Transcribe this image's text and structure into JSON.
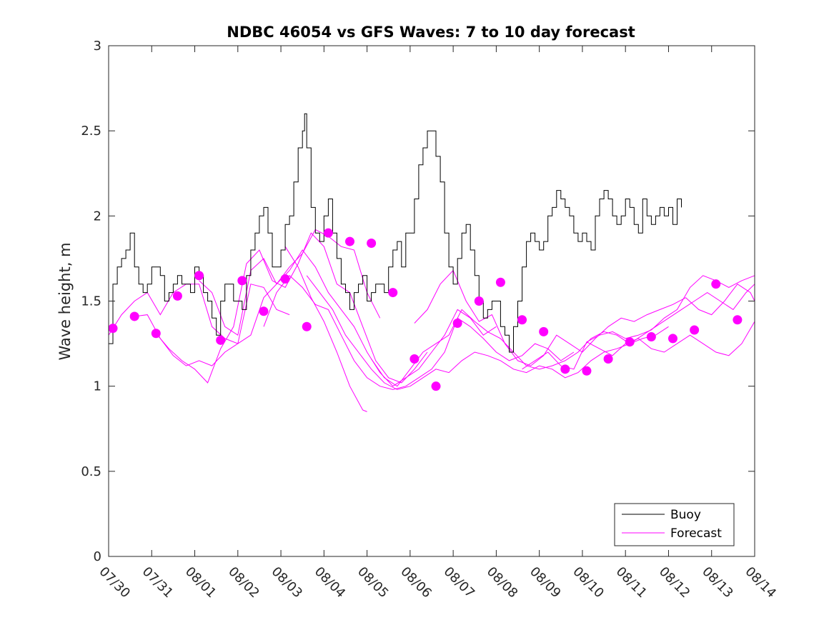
{
  "chart_data": {
    "type": "line",
    "title": "NDBC 46054 vs GFS Waves: 7 to 10 day forecast",
    "xlabel": "",
    "ylabel": "Wave height, m",
    "ylim": [
      0,
      3
    ],
    "yticks": [
      "0",
      "0.5",
      "1",
      "1.5",
      "2",
      "2.5",
      "3"
    ],
    "xlim": [
      "07/30",
      "08/14"
    ],
    "xticks": [
      "07/30",
      "07/31",
      "08/01",
      "08/02",
      "08/03",
      "08/04",
      "08/05",
      "08/06",
      "08/07",
      "08/08",
      "08/09",
      "08/10",
      "08/11",
      "08/12",
      "08/13",
      "08/14"
    ],
    "grid": false,
    "legend": {
      "position": "bottom-right",
      "entries": [
        "Buoy",
        "Forecast"
      ]
    },
    "colors": {
      "buoy": "#000000",
      "forecast": "#ff00ff"
    },
    "buoy": {
      "name": "Buoy",
      "x": [
        0,
        0.1,
        0.2,
        0.3,
        0.4,
        0.5,
        0.6,
        0.7,
        0.8,
        0.9,
        1.0,
        1.1,
        1.2,
        1.3,
        1.4,
        1.5,
        1.6,
        1.7,
        1.8,
        1.9,
        2.0,
        2.1,
        2.2,
        2.3,
        2.4,
        2.5,
        2.6,
        2.7,
        2.8,
        2.9,
        3.0,
        3.1,
        3.2,
        3.3,
        3.4,
        3.5,
        3.6,
        3.7,
        3.8,
        3.9,
        4.0,
        4.1,
        4.2,
        4.3,
        4.4,
        4.5,
        4.55,
        4.6,
        4.7,
        4.8,
        4.9,
        5.0,
        5.1,
        5.2,
        5.3,
        5.4,
        5.5,
        5.6,
        5.7,
        5.8,
        5.9,
        6.0,
        6.1,
        6.2,
        6.3,
        6.4,
        6.5,
        6.6,
        6.7,
        6.8,
        6.9,
        7.0,
        7.1,
        7.2,
        7.3,
        7.4,
        7.5,
        7.6,
        7.7,
        7.8,
        7.9,
        8.0,
        8.1,
        8.2,
        8.3,
        8.4,
        8.5,
        8.6,
        8.7,
        8.8,
        8.9,
        9.0,
        9.1,
        9.2,
        9.3,
        9.4,
        9.5,
        9.6,
        9.7,
        9.8,
        9.9,
        10.0,
        10.1,
        10.2,
        10.3,
        10.4,
        10.5,
        10.6,
        10.7,
        10.8,
        10.9,
        11.0,
        11.1,
        11.2,
        11.3,
        11.4,
        11.5,
        11.6,
        11.7,
        11.8,
        11.9,
        12.0,
        12.1,
        12.2,
        12.3,
        12.4,
        12.5,
        12.6,
        12.7,
        12.8,
        12.9,
        13.0,
        13.1,
        13.2,
        13.3
      ],
      "values": [
        1.25,
        1.6,
        1.7,
        1.75,
        1.8,
        1.9,
        1.7,
        1.6,
        1.55,
        1.6,
        1.7,
        1.7,
        1.65,
        1.5,
        1.55,
        1.6,
        1.65,
        1.6,
        1.6,
        1.55,
        1.7,
        1.65,
        1.55,
        1.5,
        1.4,
        1.3,
        1.5,
        1.6,
        1.6,
        1.5,
        1.5,
        1.45,
        1.65,
        1.8,
        1.9,
        2.0,
        2.05,
        1.9,
        1.7,
        1.7,
        1.8,
        1.95,
        2.0,
        2.2,
        2.4,
        2.5,
        2.6,
        2.4,
        2.05,
        1.9,
        1.85,
        2.0,
        2.1,
        1.9,
        1.75,
        1.6,
        1.55,
        1.45,
        1.55,
        1.6,
        1.65,
        1.5,
        1.55,
        1.6,
        1.6,
        1.55,
        1.7,
        1.8,
        1.85,
        1.7,
        1.9,
        1.9,
        2.1,
        2.3,
        2.4,
        2.5,
        2.5,
        2.35,
        2.2,
        1.9,
        1.7,
        1.6,
        1.75,
        1.9,
        1.95,
        1.8,
        1.65,
        1.5,
        1.4,
        1.45,
        1.5,
        1.5,
        1.35,
        1.3,
        1.2,
        1.35,
        1.5,
        1.7,
        1.85,
        1.9,
        1.85,
        1.8,
        1.85,
        2.0,
        2.05,
        2.15,
        2.1,
        2.05,
        2.0,
        1.9,
        1.85,
        1.9,
        1.85,
        1.8,
        2.0,
        2.1,
        2.15,
        2.1,
        2.0,
        1.95,
        2.0,
        2.1,
        2.05,
        1.95,
        1.9,
        2.1,
        2.0,
        1.95,
        2.0,
        2.05,
        2.0,
        2.05,
        1.95,
        2.1,
        2.05
      ]
    },
    "forecast_markers": {
      "name": "Forecast",
      "x": [
        0.1,
        0.6,
        1.1,
        1.6,
        2.1,
        2.6,
        3.1,
        3.6,
        4.1,
        4.6,
        5.1,
        5.6,
        6.1,
        6.6,
        7.1,
        7.6,
        8.1,
        8.6,
        9.1,
        9.6,
        10.1,
        10.6,
        11.1,
        11.6,
        12.1,
        12.6,
        13.1,
        13.6,
        14.1,
        14.6
      ],
      "values": [
        1.34,
        1.41,
        1.31,
        1.53,
        1.65,
        1.27,
        1.62,
        1.44,
        1.63,
        1.35,
        1.9,
        1.85,
        1.84,
        1.55,
        1.16,
        1.0,
        1.37,
        1.5,
        1.61,
        1.39,
        1.32,
        1.1,
        1.09,
        1.16,
        1.26,
        1.29,
        1.28,
        1.33,
        1.6,
        1.39
      ]
    },
    "forecast_series": [
      {
        "x": [
          0,
          0.3,
          0.6,
          0.9,
          1.2,
          1.5,
          1.8,
          2.1,
          2.4,
          2.7,
          3.0,
          3.3,
          3.6,
          3.9,
          4.2
        ],
        "values": [
          1.3,
          1.42,
          1.5,
          1.55,
          1.42,
          1.55,
          1.6,
          1.6,
          1.35,
          1.28,
          1.25,
          1.6,
          1.58,
          1.45,
          1.42
        ]
      },
      {
        "x": [
          0.6,
          0.9,
          1.2,
          1.5,
          1.8,
          2.1,
          2.4,
          2.7,
          3.0,
          3.3,
          3.6,
          3.9,
          4.2,
          4.5,
          4.8,
          5.1,
          5.4,
          5.7,
          6.0,
          6.3
        ],
        "values": [
          1.41,
          1.42,
          1.28,
          1.18,
          1.12,
          1.15,
          1.12,
          1.2,
          1.25,
          1.3,
          1.52,
          1.6,
          1.7,
          1.78,
          1.92,
          1.88,
          1.82,
          1.8,
          1.55,
          1.4
        ]
      },
      {
        "x": [
          1.1,
          1.4,
          1.7,
          2.0,
          2.3,
          2.6,
          2.9,
          3.2,
          3.5,
          3.8,
          4.1,
          4.4,
          4.7,
          5.0,
          5.3,
          5.6,
          5.9,
          6.2,
          6.5,
          6.8,
          7.1,
          7.4
        ],
        "values": [
          1.31,
          1.22,
          1.15,
          1.1,
          1.02,
          1.22,
          1.35,
          1.72,
          1.8,
          1.62,
          1.58,
          1.72,
          1.9,
          1.82,
          1.6,
          1.55,
          1.35,
          1.15,
          1.05,
          1.02,
          1.1,
          1.2
        ]
      },
      {
        "x": [
          2.1,
          2.4,
          2.7,
          3.0,
          3.3,
          3.6,
          3.9,
          4.2,
          4.5,
          4.8,
          5.1,
          5.4,
          5.7,
          6.0,
          6.3,
          6.6,
          6.9,
          7.2,
          7.5,
          7.8,
          8.1,
          8.4,
          8.7,
          9.0
        ],
        "values": [
          1.62,
          1.55,
          1.35,
          1.3,
          1.68,
          1.75,
          1.6,
          1.68,
          1.8,
          1.7,
          1.55,
          1.45,
          1.35,
          1.2,
          1.08,
          1.0,
          1.05,
          1.1,
          1.2,
          1.3,
          1.45,
          1.4,
          1.3,
          1.35
        ]
      },
      {
        "x": [
          3.6,
          3.9,
          4.2,
          4.5,
          4.8,
          5.1,
          5.4,
          5.7,
          6.0,
          6.3,
          6.6,
          6.9,
          7.2,
          7.5,
          7.8,
          8.1,
          8.4,
          8.7,
          9.0,
          9.3,
          9.6,
          9.9,
          10.2,
          10.5,
          10.8
        ],
        "values": [
          1.35,
          1.55,
          1.65,
          1.58,
          1.48,
          1.45,
          1.3,
          1.15,
          1.05,
          1.0,
          0.98,
          1.0,
          1.05,
          1.1,
          1.2,
          1.4,
          1.35,
          1.28,
          1.2,
          1.15,
          1.18,
          1.25,
          1.22,
          1.15,
          1.2
        ]
      },
      {
        "x": [
          4.6,
          4.9,
          5.2,
          5.5,
          5.8,
          6.1,
          6.4,
          6.7,
          7.0,
          7.3,
          7.6,
          7.9,
          8.2,
          8.5,
          8.8,
          9.1,
          9.4,
          9.7,
          10.0,
          10.3,
          10.6,
          10.9,
          11.2,
          11.5,
          11.8,
          12.1,
          12.4,
          12.7,
          13.0
        ],
        "values": [
          1.65,
          1.55,
          1.45,
          1.3,
          1.2,
          1.1,
          1.02,
          0.98,
          1.0,
          1.05,
          1.1,
          1.08,
          1.15,
          1.2,
          1.18,
          1.15,
          1.1,
          1.08,
          1.12,
          1.1,
          1.05,
          1.08,
          1.15,
          1.2,
          1.22,
          1.25,
          1.28,
          1.3,
          1.35
        ]
      },
      {
        "x": [
          4.1,
          4.4,
          4.7,
          5.0,
          5.3,
          5.6,
          5.9,
          6.0
        ],
        "values": [
          1.82,
          1.7,
          1.52,
          1.38,
          1.2,
          1.0,
          0.86,
          0.85
        ]
      },
      {
        "x": [
          6.1,
          6.4,
          6.7,
          7.0,
          7.3,
          7.6,
          7.9,
          8.2,
          8.5,
          8.8,
          9.1,
          9.4,
          9.7,
          10.0,
          10.3,
          10.6,
          10.9,
          11.2,
          11.5,
          11.8,
          12.1,
          12.4,
          12.7,
          13.0,
          13.3,
          13.6,
          13.9,
          14.2,
          14.5,
          14.8,
          15.0
        ],
        "values": [
          1.16,
          1.05,
          1.0,
          1.1,
          1.2,
          1.25,
          1.3,
          1.45,
          1.38,
          1.32,
          1.28,
          1.2,
          1.12,
          1.1,
          1.12,
          1.15,
          1.2,
          1.28,
          1.32,
          1.3,
          1.25,
          1.3,
          1.35,
          1.4,
          1.45,
          1.5,
          1.55,
          1.5,
          1.45,
          1.55,
          1.6
        ]
      },
      {
        "x": [
          7.1,
          7.4,
          7.7,
          8.0,
          8.3,
          8.6,
          8.9,
          9.2,
          9.5,
          9.8,
          10.1,
          10.4,
          10.7,
          11.0,
          11.3,
          11.6,
          11.9,
          12.2,
          12.5,
          12.8,
          13.1,
          13.4,
          13.7,
          14.0,
          14.3,
          14.6,
          14.9,
          15.0
        ],
        "values": [
          1.37,
          1.45,
          1.6,
          1.68,
          1.5,
          1.38,
          1.42,
          1.25,
          1.15,
          1.12,
          1.18,
          1.3,
          1.25,
          1.2,
          1.28,
          1.35,
          1.4,
          1.38,
          1.42,
          1.45,
          1.48,
          1.52,
          1.45,
          1.42,
          1.5,
          1.6,
          1.55,
          1.5
        ]
      },
      {
        "x": [
          9.6,
          9.9,
          10.2,
          10.5,
          10.8,
          11.1,
          11.4,
          11.7,
          12.0,
          12.3,
          12.6,
          12.9,
          13.2,
          13.5,
          13.8,
          14.1,
          14.4,
          14.7,
          15.0
        ],
        "values": [
          1.1,
          1.15,
          1.2,
          1.12,
          1.1,
          1.26,
          1.3,
          1.32,
          1.28,
          1.3,
          1.33,
          1.4,
          1.45,
          1.58,
          1.65,
          1.62,
          1.58,
          1.62,
          1.65
        ]
      },
      {
        "x": [
          11.1,
          11.4,
          11.7,
          12.0,
          12.3,
          12.6,
          12.9,
          13.2,
          13.5,
          13.8,
          14.1,
          14.4,
          14.7,
          15.0
        ],
        "values": [
          1.26,
          1.22,
          1.18,
          1.25,
          1.28,
          1.22,
          1.2,
          1.25,
          1.3,
          1.25,
          1.2,
          1.18,
          1.25,
          1.38
        ]
      }
    ]
  }
}
